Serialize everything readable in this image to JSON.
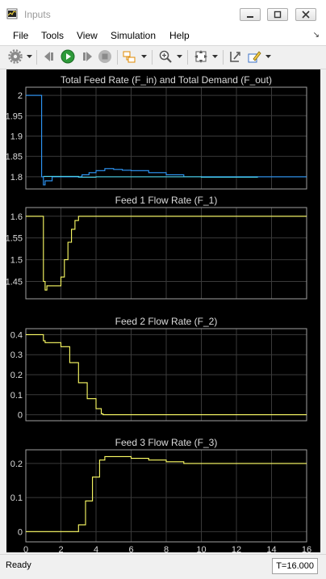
{
  "window": {
    "title": "Inputs"
  },
  "menu": [
    "File",
    "Tools",
    "View",
    "Simulation",
    "Help"
  ],
  "toolbar": {
    "icons": [
      "gear-icon",
      "dropdown-arrow-icon",
      "step-back-icon",
      "run-icon",
      "step-forward-icon",
      "stop-icon",
      "highlight-block-icon",
      "dropdown-arrow-icon",
      "zoom-in-icon",
      "dropdown-arrow-icon",
      "autoscale-icon",
      "dropdown-arrow-icon",
      "restore-view-icon",
      "edit-icon",
      "dropdown-arrow-icon"
    ]
  },
  "colors": {
    "scope_background": "#000000",
    "axes_border": "#a0a0a0",
    "grid": "#3a3a3a",
    "text": "#dcdcdc",
    "series_yellow": "#ffff66",
    "series_blue": "#2f9cff",
    "series_cyan": "#4ad0e8"
  },
  "status": {
    "text": "Ready",
    "time": "T=16.000"
  },
  "chart_data": [
    {
      "type": "line",
      "title": "Total Feed Rate (F_in) and Total Demand (F_out)",
      "xlim": [
        0,
        16
      ],
      "ylim": [
        1.77,
        2.02
      ],
      "yticks": [
        2,
        1.95,
        1.9,
        1.85,
        1.8
      ],
      "ytick_labels": [
        "2",
        "1.95",
        "1.9",
        "1.85",
        "1.8"
      ],
      "grid": true,
      "series": [
        {
          "color": "#2f9cff",
          "x": [
            0,
            0.9,
            0.9,
            1.0,
            1.0,
            1.1,
            1.25,
            1.5,
            2.0,
            3.0,
            3.2,
            3.6,
            4.0,
            4.5,
            5.0,
            5.5,
            6.0,
            7.0,
            8.0,
            9.0,
            10.0,
            16.0
          ],
          "y": [
            2.0,
            2.0,
            1.8,
            1.8,
            1.78,
            1.79,
            1.79,
            1.8,
            1.8,
            1.8,
            1.805,
            1.81,
            1.815,
            1.82,
            1.818,
            1.816,
            1.815,
            1.81,
            1.805,
            1.8,
            1.8,
            1.8
          ]
        },
        {
          "color": "#4ad0e8",
          "x": [
            1.0,
            2.0,
            3.0,
            4.0,
            6.0,
            9.0,
            10.0,
            13.2
          ],
          "y": [
            1.801,
            1.801,
            1.799,
            1.8,
            1.8,
            1.8,
            1.799,
            1.8
          ]
        }
      ]
    },
    {
      "type": "line",
      "title": "Feed 1 Flow Rate (F_1)",
      "xlim": [
        0,
        16
      ],
      "ylim": [
        1.41,
        1.62
      ],
      "yticks": [
        1.6,
        1.55,
        1.5,
        1.45
      ],
      "ytick_labels": [
        "1.6",
        "1.55",
        "1.5",
        "1.45"
      ],
      "grid": true,
      "series": [
        {
          "color": "#ffff66",
          "x": [
            0,
            0.9,
            1.0,
            1.1,
            1.2,
            1.4,
            1.6,
            1.9,
            2.0,
            2.2,
            2.4,
            2.6,
            2.8,
            3.0,
            16
          ],
          "y": [
            1.6,
            1.6,
            1.45,
            1.43,
            1.44,
            1.44,
            1.44,
            1.44,
            1.46,
            1.5,
            1.54,
            1.57,
            1.59,
            1.6,
            1.6
          ]
        }
      ]
    },
    {
      "type": "line",
      "title": "Feed 2 Flow Rate (F_2)",
      "xlim": [
        0,
        16
      ],
      "ylim": [
        -0.03,
        0.43
      ],
      "yticks": [
        0.4,
        0.3,
        0.2,
        0.1,
        0
      ],
      "ytick_labels": [
        "0.4",
        "0.3",
        "0.2",
        "0.1",
        "0"
      ],
      "grid": true,
      "series": [
        {
          "color": "#ffff66",
          "x": [
            0,
            0.9,
            1.0,
            1.1,
            1.9,
            2.0,
            2.5,
            3.0,
            3.5,
            4.0,
            4.3,
            4.4,
            16
          ],
          "y": [
            0.4,
            0.4,
            0.37,
            0.36,
            0.36,
            0.34,
            0.26,
            0.16,
            0.08,
            0.03,
            0.005,
            0,
            0
          ]
        }
      ]
    },
    {
      "type": "line",
      "title": "Feed 3 Flow Rate  (F_3)",
      "xlim": [
        0,
        16
      ],
      "ylim": [
        -0.03,
        0.24
      ],
      "yticks": [
        0.2,
        0.1,
        0
      ],
      "ytick_labels": [
        "0.2",
        "0.1",
        "0"
      ],
      "xticks": [
        0,
        2,
        4,
        6,
        8,
        10,
        12,
        14,
        16
      ],
      "xtick_labels": [
        "0",
        "2",
        "4",
        "6",
        "8",
        "10",
        "12",
        "14",
        "16"
      ],
      "grid": true,
      "series": [
        {
          "color": "#ffff66",
          "x": [
            0,
            2.8,
            3.0,
            3.4,
            3.8,
            4.2,
            4.5,
            5.0,
            6.0,
            7.0,
            8.0,
            9.0,
            16
          ],
          "y": [
            0,
            0,
            0.02,
            0.09,
            0.16,
            0.21,
            0.22,
            0.22,
            0.215,
            0.21,
            0.205,
            0.2,
            0.2
          ]
        }
      ]
    }
  ]
}
